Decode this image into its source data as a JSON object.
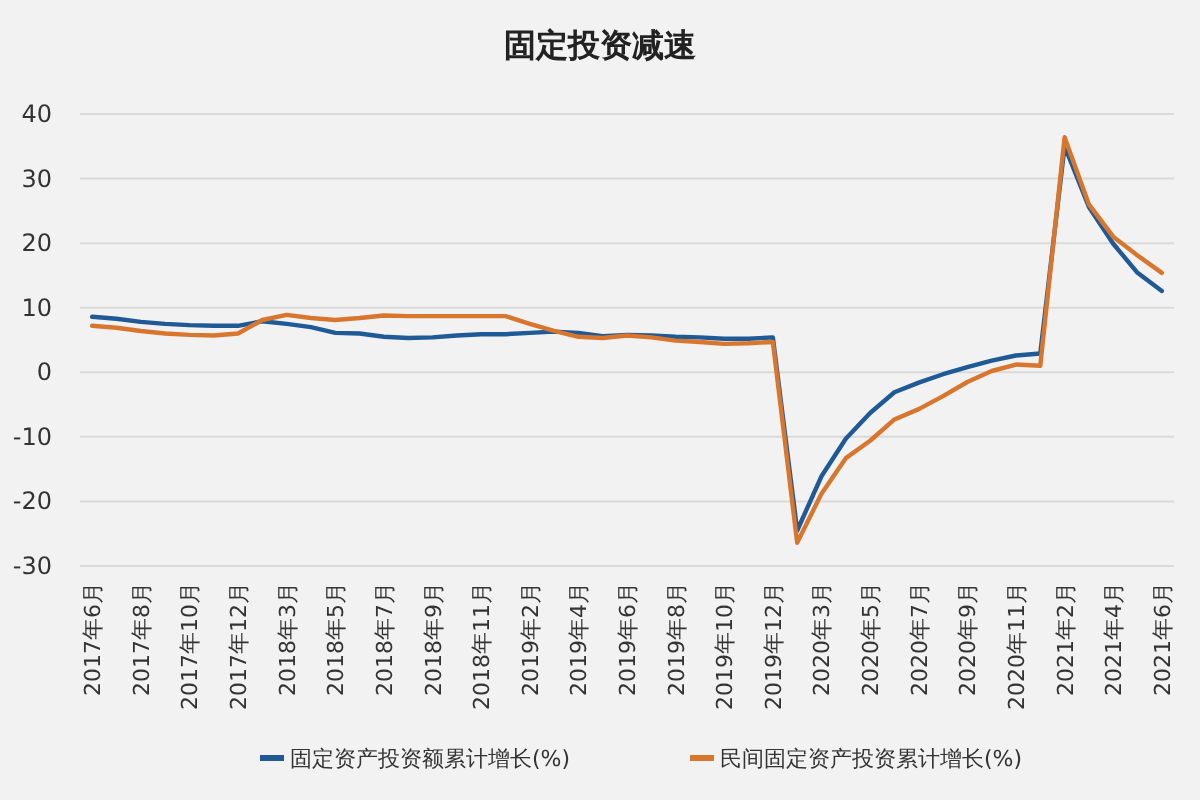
{
  "chart_data": {
    "type": "line",
    "title": "固定投资减速",
    "categories": [
      "2017年6月",
      null,
      "2017年8月",
      null,
      "2017年10月",
      null,
      "2017年12月",
      null,
      "2018年3月",
      null,
      "2018年5月",
      null,
      "2018年7月",
      null,
      "2018年9月",
      null,
      "2018年11月",
      null,
      "2019年2月",
      null,
      "2019年4月",
      null,
      "2019年6月",
      null,
      "2019年8月",
      null,
      "2019年10月",
      null,
      "2019年12月",
      null,
      "2020年3月",
      null,
      "2020年5月",
      null,
      "2020年7月",
      null,
      "2020年9月",
      null,
      "2020年11月",
      null,
      "2021年2月",
      null,
      "2021年4月",
      null,
      "2021年6月"
    ],
    "series": [
      {
        "name": "固定资产投资额累计增长(%)",
        "color": "#1f5a96",
        "values": [
          8.6,
          8.3,
          7.8,
          7.5,
          7.3,
          7.2,
          7.2,
          7.9,
          7.5,
          7.0,
          6.1,
          6.0,
          5.5,
          5.3,
          5.4,
          5.7,
          5.9,
          5.9,
          6.1,
          6.3,
          6.1,
          5.6,
          5.8,
          5.7,
          5.5,
          5.4,
          5.2,
          5.2,
          5.4,
          -24.5,
          -16.1,
          -10.3,
          -6.3,
          -3.1,
          -1.6,
          -0.3,
          0.8,
          1.8,
          2.6,
          2.9,
          35.0,
          25.6,
          19.9,
          15.4,
          12.6
        ]
      },
      {
        "name": "民间固定资产投资累计增长(%)",
        "color": "#d9762e",
        "values": [
          7.2,
          6.9,
          6.4,
          6.0,
          5.8,
          5.7,
          6.0,
          8.1,
          8.9,
          8.4,
          8.1,
          8.4,
          8.8,
          8.7,
          8.7,
          8.7,
          8.7,
          8.7,
          7.5,
          6.4,
          5.5,
          5.3,
          5.7,
          5.4,
          4.9,
          4.7,
          4.4,
          4.5,
          4.7,
          -26.4,
          -18.8,
          -13.3,
          -10.6,
          -7.3,
          -5.7,
          -3.7,
          -1.5,
          0.2,
          1.2,
          1.0,
          36.4,
          26.0,
          21.0,
          18.1,
          15.4
        ]
      }
    ],
    "ylim": [
      -30,
      40
    ],
    "yticks": [
      -30,
      -20,
      -10,
      0,
      10,
      20,
      30,
      40
    ],
    "grid": "y",
    "legend": "bottom",
    "marker": "none",
    "line_style": "solid"
  }
}
